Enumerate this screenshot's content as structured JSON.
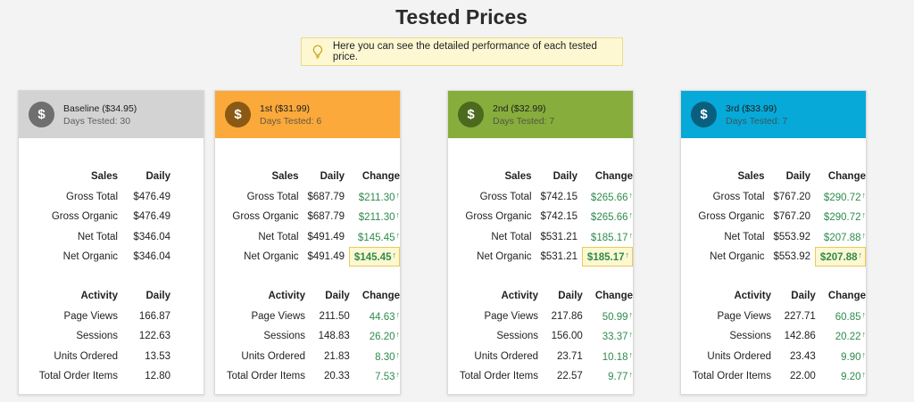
{
  "page": {
    "title": "Tested Prices",
    "hint": "Here you can see the detailed performance of each tested price."
  },
  "colors": {
    "baseline": "#d3d3d3",
    "first": "#faa93a",
    "second": "#87ad3c",
    "third": "#06a9d8",
    "positive": "#2e8b4e"
  },
  "icons": {
    "hint": "lightbulb-icon",
    "price": "dollar-coin-icon"
  },
  "baseline": {
    "name": "Baseline ($34.95)",
    "days": "Days Tested: 30",
    "sales_header": "Sales",
    "daily_header": "Daily",
    "sales": [
      {
        "label": "Gross Total",
        "daily": "$476.49"
      },
      {
        "label": "Gross Organic",
        "daily": "$476.49"
      },
      {
        "label": "Net Total",
        "daily": "$346.04"
      },
      {
        "label": "Net Organic",
        "daily": "$346.04"
      }
    ],
    "activity_header": "Activity",
    "activity": [
      {
        "label": "Page Views",
        "daily": "166.87"
      },
      {
        "label": "Sessions",
        "daily": "122.63"
      },
      {
        "label": "Units Ordered",
        "daily": "13.53"
      },
      {
        "label": "Total Order Items",
        "daily": "12.80"
      }
    ]
  },
  "tested": [
    {
      "name": "1st ($31.99)",
      "days": "Days Tested: 6",
      "sales_header": "Sales",
      "daily_header": "Daily",
      "change_header": "Change",
      "sales": [
        {
          "label": "Gross Total",
          "daily": "$687.79",
          "change": "$211.30"
        },
        {
          "label": "Gross Organic",
          "daily": "$687.79",
          "change": "$211.30"
        },
        {
          "label": "Net Total",
          "daily": "$491.49",
          "change": "$145.45"
        },
        {
          "label": "Net Organic",
          "daily": "$491.49",
          "change": "$145.45"
        }
      ],
      "activity_header": "Activity",
      "activity": [
        {
          "label": "Page Views",
          "daily": "211.50",
          "change": "44.63"
        },
        {
          "label": "Sessions",
          "daily": "148.83",
          "change": "26.20"
        },
        {
          "label": "Units Ordered",
          "daily": "21.83",
          "change": "8.30"
        },
        {
          "label": "Total Order Items",
          "daily": "20.33",
          "change": "7.53"
        }
      ]
    },
    {
      "name": "2nd ($32.99)",
      "days": "Days Tested: 7",
      "sales_header": "Sales",
      "daily_header": "Daily",
      "change_header": "Change",
      "sales": [
        {
          "label": "Gross Total",
          "daily": "$742.15",
          "change": "$265.66"
        },
        {
          "label": "Gross Organic",
          "daily": "$742.15",
          "change": "$265.66"
        },
        {
          "label": "Net Total",
          "daily": "$531.21",
          "change": "$185.17"
        },
        {
          "label": "Net Organic",
          "daily": "$531.21",
          "change": "$185.17"
        }
      ],
      "activity_header": "Activity",
      "activity": [
        {
          "label": "Page Views",
          "daily": "217.86",
          "change": "50.99"
        },
        {
          "label": "Sessions",
          "daily": "156.00",
          "change": "33.37"
        },
        {
          "label": "Units Ordered",
          "daily": "23.71",
          "change": "10.18"
        },
        {
          "label": "Total Order Items",
          "daily": "22.57",
          "change": "9.77"
        }
      ]
    },
    {
      "name": "3rd ($33.99)",
      "days": "Days Tested: 7",
      "sales_header": "Sales",
      "daily_header": "Daily",
      "change_header": "Change",
      "sales": [
        {
          "label": "Gross Total",
          "daily": "$767.20",
          "change": "$290.72"
        },
        {
          "label": "Gross Organic",
          "daily": "$767.20",
          "change": "$290.72"
        },
        {
          "label": "Net Total",
          "daily": "$553.92",
          "change": "$207.88"
        },
        {
          "label": "Net Organic",
          "daily": "$553.92",
          "change": "$207.88"
        }
      ],
      "activity_header": "Activity",
      "activity": [
        {
          "label": "Page Views",
          "daily": "227.71",
          "change": "60.85"
        },
        {
          "label": "Sessions",
          "daily": "142.86",
          "change": "20.22"
        },
        {
          "label": "Units Ordered",
          "daily": "23.43",
          "change": "9.90"
        },
        {
          "label": "Total Order Items",
          "daily": "22.00",
          "change": "9.20"
        }
      ]
    }
  ]
}
